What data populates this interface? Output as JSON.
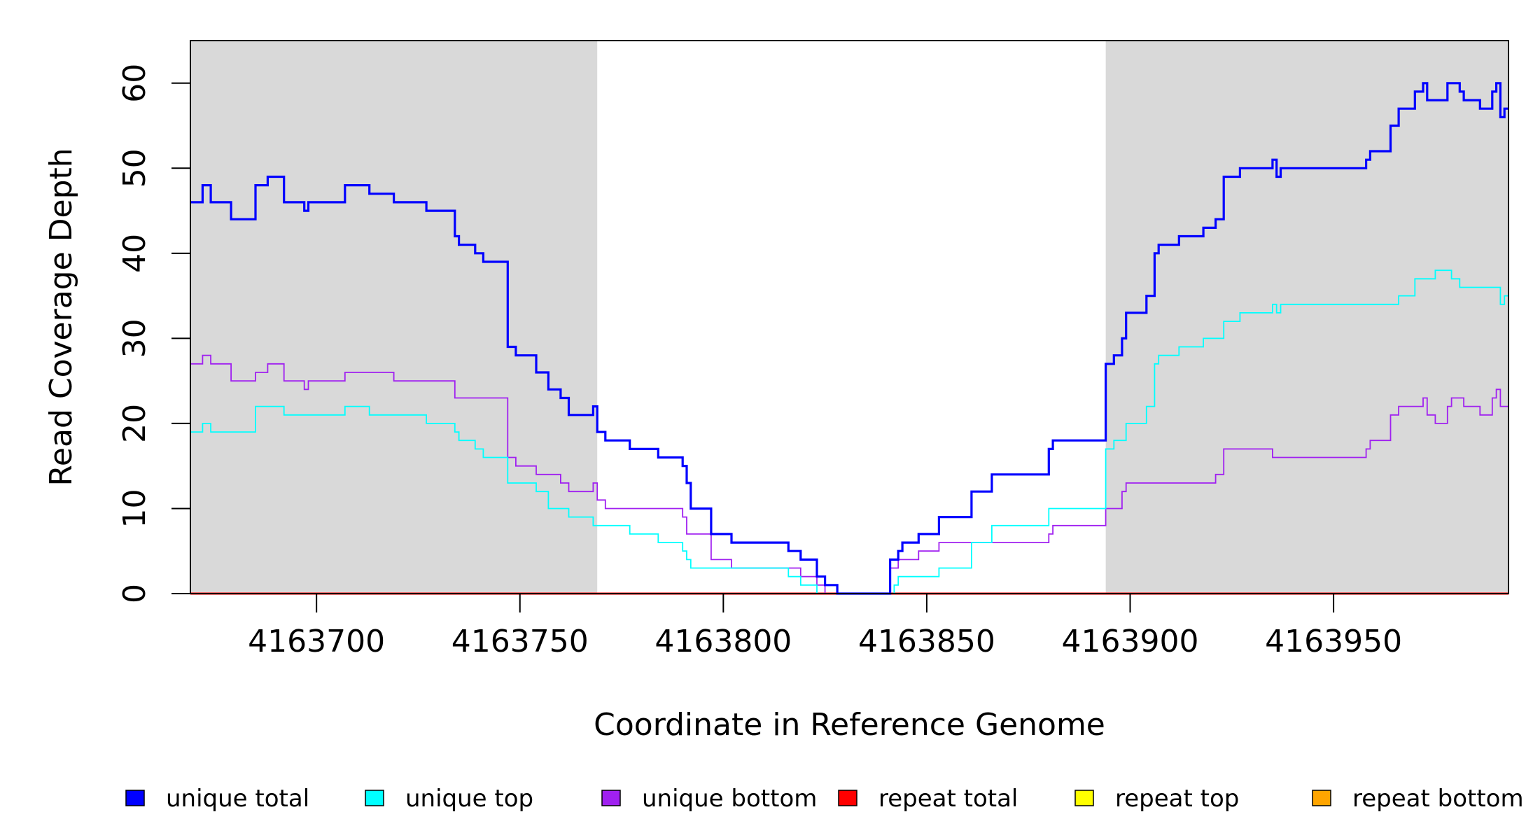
{
  "chart_data": {
    "type": "line",
    "step": true,
    "xlabel": "Coordinate in Reference Genome",
    "ylabel": "Read Coverage Depth",
    "xlim": [
      4163669,
      4163993
    ],
    "ylim": [
      0,
      65
    ],
    "x_ticks": [
      4163700,
      4163750,
      4163800,
      4163850,
      4163900,
      4163950
    ],
    "y_ticks": [
      0,
      10,
      20,
      30,
      40,
      50,
      60
    ],
    "shaded_regions": [
      {
        "from": 4163669,
        "to": 4163769,
        "color": "#d9d9d9"
      },
      {
        "from": 4163894,
        "to": 4163993,
        "color": "#d9d9d9"
      }
    ],
    "series": [
      {
        "name": "unique total",
        "color": "#0000ff",
        "points": [
          [
            4163669,
            46
          ],
          [
            4163672,
            48
          ],
          [
            4163674,
            46
          ],
          [
            4163679,
            44
          ],
          [
            4163685,
            48
          ],
          [
            4163688,
            49
          ],
          [
            4163692,
            46
          ],
          [
            4163697,
            45
          ],
          [
            4163698,
            46
          ],
          [
            4163707,
            48
          ],
          [
            4163713,
            47
          ],
          [
            4163719,
            46
          ],
          [
            4163727,
            45
          ],
          [
            4163734,
            42
          ],
          [
            4163735,
            41
          ],
          [
            4163739,
            40
          ],
          [
            4163741,
            39
          ],
          [
            4163747,
            29
          ],
          [
            4163749,
            28
          ],
          [
            4163754,
            26
          ],
          [
            4163757,
            24
          ],
          [
            4163760,
            23
          ],
          [
            4163762,
            21
          ],
          [
            4163768,
            22
          ],
          [
            4163769,
            19
          ],
          [
            4163771,
            18
          ],
          [
            4163777,
            17
          ],
          [
            4163784,
            16
          ],
          [
            4163790,
            15
          ],
          [
            4163791,
            13
          ],
          [
            4163792,
            10
          ],
          [
            4163797,
            7
          ],
          [
            4163802,
            6
          ],
          [
            4163816,
            5
          ],
          [
            4163819,
            4
          ],
          [
            4163823,
            2
          ],
          [
            4163825,
            1
          ],
          [
            4163828,
            0
          ],
          [
            4163841,
            4
          ],
          [
            4163843,
            5
          ],
          [
            4163844,
            6
          ],
          [
            4163848,
            7
          ],
          [
            4163853,
            9
          ],
          [
            4163861,
            12
          ],
          [
            4163866,
            14
          ],
          [
            4163880,
            17
          ],
          [
            4163881,
            18
          ],
          [
            4163894,
            27
          ],
          [
            4163896,
            28
          ],
          [
            4163898,
            30
          ],
          [
            4163899,
            33
          ],
          [
            4163904,
            35
          ],
          [
            4163906,
            40
          ],
          [
            4163907,
            41
          ],
          [
            4163912,
            42
          ],
          [
            4163918,
            43
          ],
          [
            4163921,
            44
          ],
          [
            4163923,
            49
          ],
          [
            4163927,
            50
          ],
          [
            4163935,
            51
          ],
          [
            4163936,
            49
          ],
          [
            4163937,
            50
          ],
          [
            4163958,
            51
          ],
          [
            4163959,
            52
          ],
          [
            4163964,
            55
          ],
          [
            4163966,
            57
          ],
          [
            4163970,
            59
          ],
          [
            4163972,
            60
          ],
          [
            4163973,
            58
          ],
          [
            4163978,
            60
          ],
          [
            4163981,
            59
          ],
          [
            4163982,
            58
          ],
          [
            4163986,
            57
          ],
          [
            4163989,
            59
          ],
          [
            4163990,
            60
          ],
          [
            4163991,
            56
          ],
          [
            4163992,
            57
          ]
        ]
      },
      {
        "name": "unique top",
        "color": "#00ffff",
        "points": [
          [
            4163669,
            19
          ],
          [
            4163672,
            20
          ],
          [
            4163674,
            19
          ],
          [
            4163685,
            22
          ],
          [
            4163692,
            21
          ],
          [
            4163707,
            22
          ],
          [
            4163713,
            21
          ],
          [
            4163727,
            20
          ],
          [
            4163734,
            19
          ],
          [
            4163735,
            18
          ],
          [
            4163739,
            17
          ],
          [
            4163741,
            16
          ],
          [
            4163747,
            13
          ],
          [
            4163754,
            12
          ],
          [
            4163757,
            10
          ],
          [
            4163762,
            9
          ],
          [
            4163768,
            8
          ],
          [
            4163777,
            7
          ],
          [
            4163784,
            6
          ],
          [
            4163790,
            5
          ],
          [
            4163791,
            4
          ],
          [
            4163792,
            3
          ],
          [
            4163816,
            2
          ],
          [
            4163819,
            1
          ],
          [
            4163823,
            0
          ],
          [
            4163842,
            1
          ],
          [
            4163843,
            2
          ],
          [
            4163853,
            3
          ],
          [
            4163861,
            6
          ],
          [
            4163866,
            8
          ],
          [
            4163880,
            10
          ],
          [
            4163894,
            17
          ],
          [
            4163896,
            18
          ],
          [
            4163899,
            20
          ],
          [
            4163904,
            22
          ],
          [
            4163906,
            27
          ],
          [
            4163907,
            28
          ],
          [
            4163912,
            29
          ],
          [
            4163918,
            30
          ],
          [
            4163923,
            32
          ],
          [
            4163927,
            33
          ],
          [
            4163935,
            34
          ],
          [
            4163936,
            33
          ],
          [
            4163937,
            34
          ],
          [
            4163958,
            34
          ],
          [
            4163966,
            35
          ],
          [
            4163970,
            37
          ],
          [
            4163975,
            38
          ],
          [
            4163979,
            37
          ],
          [
            4163981,
            36
          ],
          [
            4163991,
            34
          ],
          [
            4163992,
            35
          ]
        ]
      },
      {
        "name": "unique bottom",
        "color": "#a020f0",
        "points": [
          [
            4163669,
            27
          ],
          [
            4163672,
            28
          ],
          [
            4163674,
            27
          ],
          [
            4163679,
            25
          ],
          [
            4163685,
            26
          ],
          [
            4163688,
            27
          ],
          [
            4163692,
            25
          ],
          [
            4163697,
            24
          ],
          [
            4163698,
            25
          ],
          [
            4163707,
            26
          ],
          [
            4163719,
            25
          ],
          [
            4163734,
            23
          ],
          [
            4163747,
            16
          ],
          [
            4163749,
            15
          ],
          [
            4163754,
            14
          ],
          [
            4163760,
            13
          ],
          [
            4163762,
            12
          ],
          [
            4163768,
            13
          ],
          [
            4163769,
            11
          ],
          [
            4163771,
            10
          ],
          [
            4163790,
            9
          ],
          [
            4163791,
            7
          ],
          [
            4163797,
            4
          ],
          [
            4163802,
            3
          ],
          [
            4163819,
            2
          ],
          [
            4163823,
            1
          ],
          [
            4163825,
            0
          ],
          [
            4163841,
            3
          ],
          [
            4163843,
            4
          ],
          [
            4163848,
            5
          ],
          [
            4163853,
            6
          ],
          [
            4163880,
            7
          ],
          [
            4163881,
            8
          ],
          [
            4163894,
            10
          ],
          [
            4163898,
            12
          ],
          [
            4163899,
            13
          ],
          [
            4163921,
            14
          ],
          [
            4163923,
            17
          ],
          [
            4163935,
            16
          ],
          [
            4163958,
            17
          ],
          [
            4163959,
            18
          ],
          [
            4163964,
            21
          ],
          [
            4163966,
            22
          ],
          [
            4163972,
            23
          ],
          [
            4163973,
            21
          ],
          [
            4163975,
            20
          ],
          [
            4163978,
            22
          ],
          [
            4163979,
            23
          ],
          [
            4163982,
            22
          ],
          [
            4163986,
            21
          ],
          [
            4163989,
            23
          ],
          [
            4163990,
            24
          ],
          [
            4163991,
            22
          ],
          [
            4163992,
            22
          ]
        ]
      },
      {
        "name": "repeat total",
        "color": "#ff0000",
        "points": [
          [
            4163669,
            0
          ],
          [
            4163993,
            0
          ]
        ]
      },
      {
        "name": "repeat top",
        "color": "#ffff00",
        "points": [
          [
            4163669,
            0
          ],
          [
            4163993,
            0
          ]
        ]
      },
      {
        "name": "repeat bottom",
        "color": "#ffa500",
        "points": [
          [
            4163669,
            0
          ],
          [
            4163993,
            0
          ]
        ]
      }
    ],
    "legend": {
      "position": "bottom",
      "entries": [
        "unique total",
        "unique top",
        "unique bottom",
        "repeat total",
        "repeat top",
        "repeat bottom"
      ]
    }
  }
}
